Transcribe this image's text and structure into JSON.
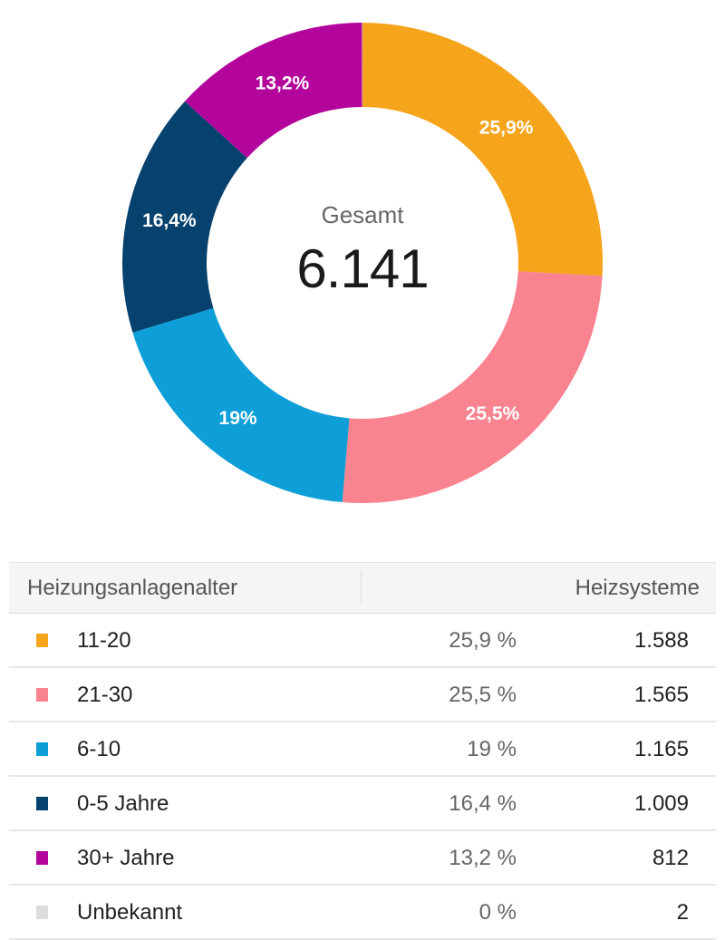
{
  "chart_data": {
    "type": "pie",
    "variant": "donut",
    "center_label": "Gesamt",
    "center_value": "6.141",
    "slices": [
      {
        "label": "11-20",
        "value": 1588,
        "percent_label": "25,9%",
        "table_percent": "25,9 %",
        "count_label": "1.588",
        "color": "#f5a41b"
      },
      {
        "label": "21-30",
        "value": 1565,
        "percent_label": "25,5%",
        "table_percent": "25,5 %",
        "count_label": "1.565",
        "color": "#f9838f"
      },
      {
        "label": "6-10",
        "value": 1165,
        "percent_label": "19%",
        "table_percent": "19 %",
        "count_label": "1.165",
        "color": "#0e9fd8"
      },
      {
        "label": "0-5 Jahre",
        "value": 1009,
        "percent_label": "16,4%",
        "table_percent": "16,4 %",
        "count_label": "1.009",
        "color": "#07416e"
      },
      {
        "label": "30+ Jahre",
        "value": 812,
        "percent_label": "13,2%",
        "table_percent": "13,2 %",
        "count_label": "812",
        "color": "#b3059b"
      },
      {
        "label": "Unbekannt",
        "value": 2,
        "percent_label": "",
        "table_percent": "0 %",
        "count_label": "2",
        "color": "#dcdcdc"
      }
    ]
  },
  "table": {
    "header_category": "Heizungsanlagenalter",
    "header_count": "Heizsysteme"
  }
}
